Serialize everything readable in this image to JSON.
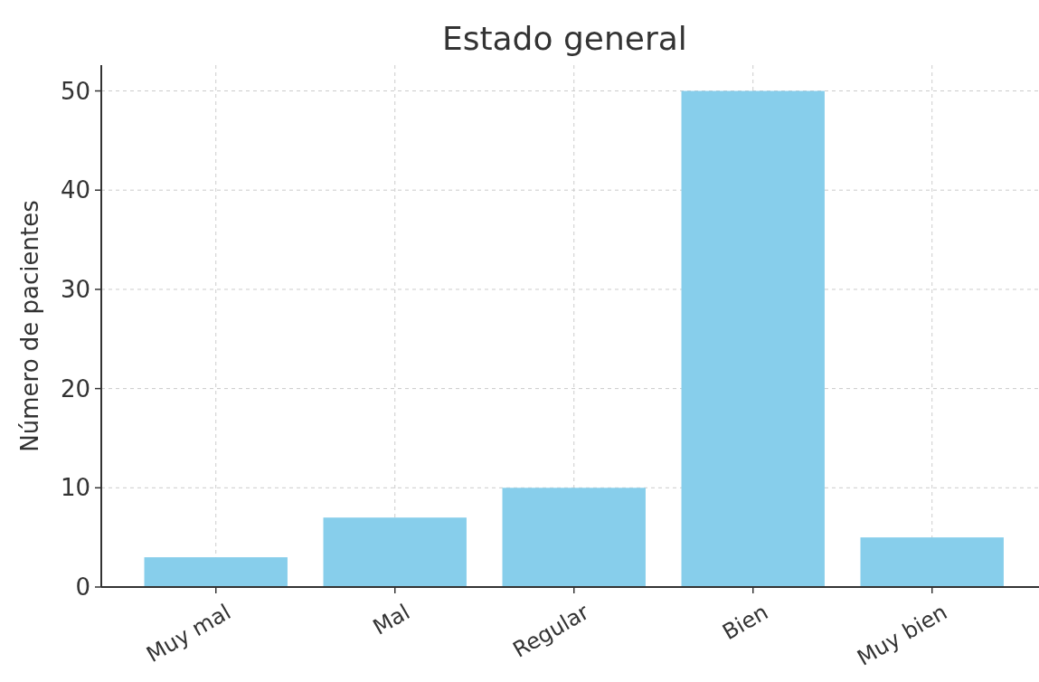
{
  "chart_data": {
    "type": "bar",
    "title": "Estado general",
    "ylabel": "Número de pacientes",
    "categories": [
      "Muy mal",
      "Mal",
      "Regular",
      "Bien",
      "Muy bien"
    ],
    "values": [
      3,
      7,
      10,
      50,
      5
    ],
    "color": "#87ceeb",
    "ylim": [
      0,
      52.6
    ],
    "yticks": [
      0,
      10,
      20,
      30,
      40,
      50
    ],
    "grid": true
  }
}
